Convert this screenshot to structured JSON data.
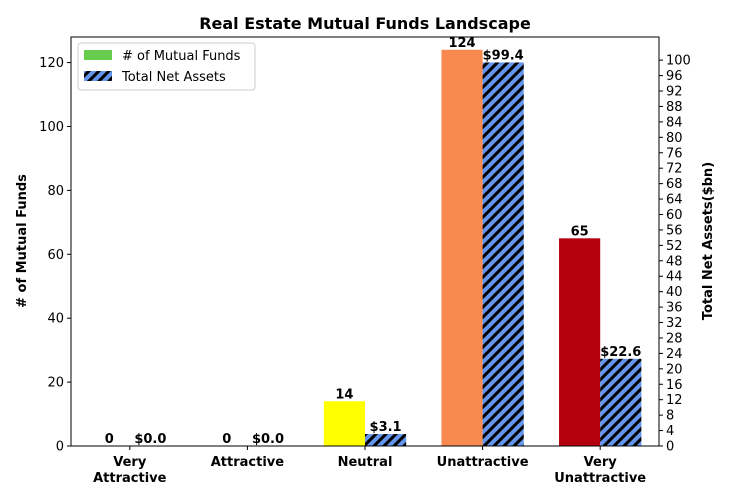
{
  "chart_data": {
    "type": "bar",
    "title": "Real Estate Mutual Funds Landscape",
    "categories": [
      "Very\nAttractive",
      "Attractive",
      "Neutral",
      "Unattractive",
      "Very\nUnattractive"
    ],
    "series": [
      {
        "name": "# of Mutual Funds",
        "axis": "left",
        "values": [
          0,
          0,
          14,
          124,
          65
        ],
        "labels": [
          "0",
          "0",
          "14",
          "124",
          "65"
        ],
        "colors": [
          "#66cc4c",
          "#66cc4c",
          "#ffff00",
          "#f88a50",
          "#b5000e"
        ],
        "legend_color": "#66cc4c"
      },
      {
        "name": "Total Net Assets",
        "axis": "right",
        "values": [
          0.0,
          0.0,
          3.1,
          99.4,
          22.6
        ],
        "labels": [
          "$0.0",
          "$0.0",
          "$3.1",
          "$99.4",
          "$22.6"
        ],
        "color": "#6495ed",
        "hatch": "diagonal"
      }
    ],
    "ylabel": "# of Mutual Funds",
    "ylabel_right": "Total Net Assets($bn)",
    "ylim": [
      0,
      128
    ],
    "yticks": [
      0,
      20,
      40,
      60,
      80,
      100,
      120
    ],
    "ylim_right": [
      0,
      106
    ],
    "yticks_right": [
      0,
      4,
      8,
      12,
      16,
      20,
      24,
      28,
      32,
      36,
      40,
      44,
      48,
      52,
      56,
      60,
      64,
      68,
      72,
      76,
      80,
      84,
      88,
      92,
      96,
      100
    ],
    "legend": "top-left",
    "grid": false
  }
}
